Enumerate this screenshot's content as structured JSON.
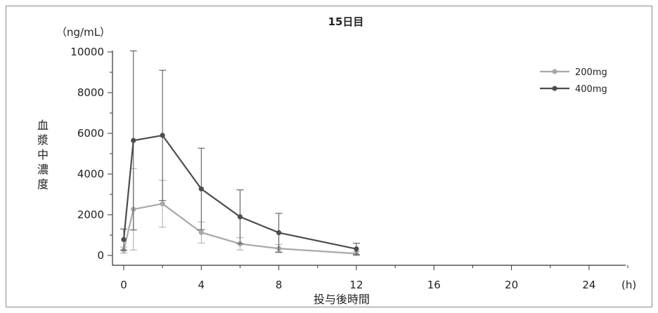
{
  "chart_data": {
    "type": "line",
    "title": "15日目",
    "xlabel": "投与後時間",
    "x_unit": "(h)",
    "ylabel": "血漿中濃度",
    "y_unit": "（ng/mL）",
    "xlim": [
      0,
      26
    ],
    "ylim": [
      0,
      10000
    ],
    "xticks": [
      0,
      4,
      8,
      12,
      16,
      20,
      24
    ],
    "yticks": [
      0,
      2000,
      4000,
      6000,
      8000,
      10000
    ],
    "legend_position": "top-right",
    "grid": false,
    "series": [
      {
        "name": "200mg",
        "color": "#a8a8a8",
        "x": [
          0,
          0.5,
          2,
          4,
          6,
          8,
          12
        ],
        "y": [
          260,
          2270,
          2540,
          1130,
          570,
          340,
          90
        ],
        "err_upper": [
          150,
          2000,
          1150,
          520,
          300,
          200,
          110
        ],
        "err_lower": [
          150,
          2000,
          1150,
          520,
          300,
          200,
          110
        ]
      },
      {
        "name": "400mg",
        "color": "#4d4d4d",
        "x": [
          0,
          0.5,
          2,
          4,
          6,
          8,
          12
        ],
        "y": [
          780,
          5650,
          5900,
          3270,
          1900,
          1120,
          320
        ],
        "err_upper": [
          520,
          4400,
          3200,
          2000,
          1320,
          950,
          280
        ],
        "err_lower": [
          520,
          4400,
          3200,
          2000,
          1320,
          950,
          280
        ]
      }
    ]
  }
}
